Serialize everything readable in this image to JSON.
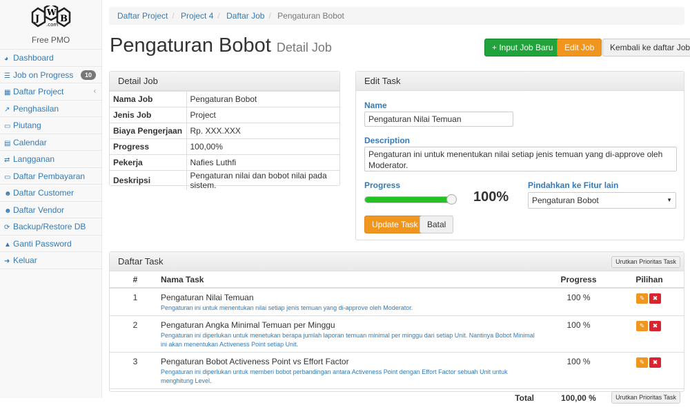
{
  "app": {
    "logo_text": "JWB .com",
    "subtitle": "Free PMO"
  },
  "sidebar": {
    "items": [
      {
        "label": "Dashboard",
        "icon": "dashboard-icon",
        "glyph": "◕"
      },
      {
        "label": "Job on Progress",
        "icon": "tasks-icon",
        "glyph": "☰",
        "badge": "10"
      },
      {
        "label": "Daftar Project",
        "icon": "table-icon",
        "glyph": "▦",
        "chevron": "‹"
      },
      {
        "label": "Penghasilan",
        "icon": "line-chart-icon",
        "glyph": "↗"
      },
      {
        "label": "Piutang",
        "icon": "money-icon",
        "glyph": "▭"
      },
      {
        "label": "Calendar",
        "icon": "calendar-icon",
        "glyph": "▤"
      },
      {
        "label": "Langganan",
        "icon": "retweet-icon",
        "glyph": "⇄"
      },
      {
        "label": "Daftar Pembayaran",
        "icon": "money-icon",
        "glyph": "▭"
      },
      {
        "label": "Daftar Customer",
        "icon": "users-icon",
        "glyph": "☻"
      },
      {
        "label": "Daftar Vendor",
        "icon": "users-icon",
        "glyph": "☻"
      },
      {
        "label": "Backup/Restore DB",
        "icon": "refresh-icon",
        "glyph": "⟳"
      },
      {
        "label": "Ganti Password",
        "icon": "lock-icon",
        "glyph": "▲"
      },
      {
        "label": "Keluar",
        "icon": "sign-out-icon",
        "glyph": "➜"
      }
    ]
  },
  "breadcrumb": [
    "Daftar Project",
    "Project 4",
    "Daftar Job",
    "Pengaturan Bobot"
  ],
  "header": {
    "title": "Pengaturan Bobot",
    "subtitle": "Detail Job"
  },
  "buttons": {
    "input_job": "+ Input Job Baru",
    "edit_job": "Edit Job",
    "back": "Kembali ke daftar Job"
  },
  "detail_job": {
    "title": "Detail Job",
    "rows": [
      [
        "Nama Job",
        "Pengaturan Bobot"
      ],
      [
        "Jenis Job",
        "Project"
      ],
      [
        "Biaya Pengerjaan",
        "Rp. XXX.XXX"
      ],
      [
        "Progress",
        "100,00%"
      ],
      [
        "Pekerja",
        "Nafies Luthfi"
      ],
      [
        "Deskripsi",
        "Pengaturan nilai dan bobot nilai pada sistem."
      ]
    ]
  },
  "edit_task": {
    "title": "Edit Task",
    "name_label": "Name",
    "name_value": "Pengaturan Nilai Temuan",
    "description_label": "Description",
    "description_value": "Pengaturan ini untuk menentukan nilai setiap jenis temuan yang di-approve oleh Moderator.",
    "progress_label": "Progress",
    "progress_value": 100,
    "progress_text": "100%",
    "move_label": "Pindahkan ke Fitur lain",
    "move_value": "Pengaturan Bobot",
    "update": "Update Task",
    "cancel": "Batal"
  },
  "task_list": {
    "title": "Daftar Task",
    "sort_button": "Urutkan Prioritas Task",
    "headers": [
      "#",
      "Nama Task",
      "Progress",
      "Pilihan"
    ],
    "rows": [
      {
        "no": "1",
        "name": "Pengaturan Nilai Temuan",
        "desc": "Pengaturan ini untuk menentukan nilai setiap jenis temuan yang di-approve oleh Moderator.",
        "progress": "100 %"
      },
      {
        "no": "2",
        "name": "Pengaturan Angka Minimal Temuan per Minggu",
        "desc": "Pengaturan ini diperlukan untuk menetukan berapa jumlah laporan temuan minimal per minggu dari setiap Unit. Nantinya Bobot Minimal ini akan menentukan Activeness Point setiap Unit.",
        "progress": "100 %"
      },
      {
        "no": "3",
        "name": "Pengaturan Bobot Activeness Point vs Effort Factor",
        "desc": "Pengaturan ini diperlukan untuk memberi bobot perbandingan antara Activeness Point dengan Effort Factor sebuah Unit untuk menghitung Level.",
        "progress": "100 %"
      }
    ],
    "total_label": "Total",
    "total_value": "100,00 %"
  },
  "colors": {
    "primary": "#337ab7",
    "success": "#1fa33a",
    "warning": "#f0961e",
    "danger": "#d9242f",
    "progress": "#22c322"
  }
}
